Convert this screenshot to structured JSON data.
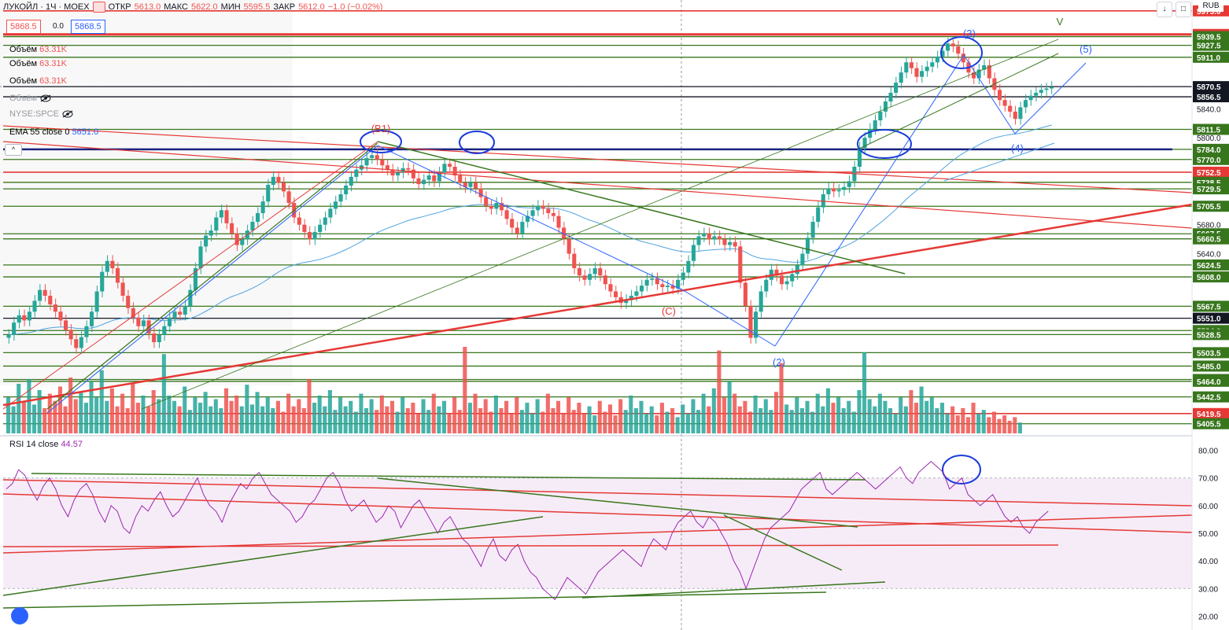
{
  "header": {
    "symbol": "ЛУКОЙЛ · 1Ч · MOEX",
    "open_label": "ОТКР",
    "open": "5613.0",
    "high_label": "МАКС",
    "high": "5622.0",
    "low_label": "МИН",
    "low": "5595.5",
    "close_label": "ЗАКР",
    "close": "5612.0",
    "change": "−1.0 (−0.02%)",
    "currency": "RUB"
  },
  "trade": {
    "sell": "5868.5",
    "spread": "0.0",
    "buy": "5868.5"
  },
  "indicators": {
    "volume_label": "Объём",
    "volume_value": "63.31K",
    "volume_hidden_label": "Объём",
    "compare_symbol": "NYSE:SPCE",
    "ema_label": "EMA 55 close 0",
    "ema_value": "5651.0",
    "rsi_label": "RSI 14 close",
    "rsi_value": "44.57",
    "collapse_symbol": "^"
  },
  "colors": {
    "up": "#26a69a",
    "down": "#ef5350",
    "up_vol": "#26a69a",
    "down_vol": "#ef5350",
    "rsi": "#9c27b0",
    "ema": "#4fa3e0",
    "wave": "#2962ff",
    "hline_green": "#38761d",
    "hline_red": "#e53935"
  },
  "chart_data": [
    {
      "type": "candlestick",
      "title": "ЛУКОЙЛ · 1Ч · MOEX",
      "ylim": [
        5390,
        5990
      ],
      "price_levels": [
        "5975.0",
        "5942.5",
        "5939.5",
        "5927.5",
        "5911.0",
        "5870.5",
        "5856.5",
        "5840.0",
        "5811.5",
        "5800.0",
        "5784.0",
        "5770.0",
        "5752.5",
        "5738.5",
        "5729.5",
        "5705.5",
        "5680.0",
        "5667.5",
        "5660.5",
        "5640.0",
        "5624.5",
        "5608.0",
        "5567.5",
        "5551.0",
        "5534.0",
        "5528.5",
        "5503.5",
        "5485.0",
        "5466.5",
        "5464.0",
        "5442.5",
        "5419.5",
        "5405.5"
      ],
      "highlighted_levels": [
        {
          "value": "5975.0",
          "color": "#e53935"
        },
        {
          "value": "5942.5",
          "color": "#e53935"
        },
        {
          "value": "5939.5",
          "color": "#38761d"
        },
        {
          "value": "5927.5",
          "color": "#38761d"
        },
        {
          "value": "5911.0",
          "color": "#38761d"
        },
        {
          "value": "5870.5",
          "color": "#131722"
        },
        {
          "value": "5856.5",
          "color": "#131722"
        },
        {
          "value": "5811.5",
          "color": "#38761d"
        },
        {
          "value": "5784.0",
          "color": "#38761d"
        },
        {
          "value": "5770.0",
          "color": "#38761d"
        },
        {
          "value": "5752.5",
          "color": "#e53935"
        },
        {
          "value": "5738.5",
          "color": "#38761d"
        },
        {
          "value": "5729.5",
          "color": "#38761d"
        },
        {
          "value": "5705.5",
          "color": "#38761d"
        },
        {
          "value": "5667.5",
          "color": "#38761d"
        },
        {
          "value": "5660.5",
          "color": "#38761d"
        },
        {
          "value": "5624.5",
          "color": "#38761d"
        },
        {
          "value": "5608.0",
          "color": "#38761d"
        },
        {
          "value": "5567.5",
          "color": "#38761d"
        },
        {
          "value": "5551.0",
          "color": "#131722"
        },
        {
          "value": "5534.0",
          "color": "#38761d"
        },
        {
          "value": "5528.5",
          "color": "#38761d"
        },
        {
          "value": "5503.5",
          "color": "#38761d"
        },
        {
          "value": "5485.0",
          "color": "#38761d"
        },
        {
          "value": "5466.5",
          "color": "#38761d"
        },
        {
          "value": "5464.0",
          "color": "#38761d"
        },
        {
          "value": "5442.5",
          "color": "#38761d"
        },
        {
          "value": "5419.5",
          "color": "#e53935"
        },
        {
          "value": "5405.5",
          "color": "#38761d"
        }
      ],
      "wave_labels": [
        "(В1)",
        "(С)",
        "(2)",
        "(3)",
        "(4)",
        "(5)",
        "V"
      ],
      "close_series": [
        5528,
        5545,
        5555,
        5548,
        5560,
        5575,
        5590,
        5582,
        5570,
        5560,
        5548,
        5535,
        5522,
        5510,
        5525,
        5540,
        5560,
        5588,
        5615,
        5630,
        5620,
        5600,
        5582,
        5565,
        5552,
        5540,
        5548,
        5530,
        5518,
        5528,
        5540,
        5552,
        5560,
        5556,
        5568,
        5590,
        5620,
        5650,
        5665,
        5672,
        5690,
        5700,
        5682,
        5668,
        5652,
        5660,
        5672,
        5684,
        5696,
        5712,
        5735,
        5746,
        5738,
        5726,
        5710,
        5690,
        5680,
        5670,
        5660,
        5670,
        5680,
        5690,
        5702,
        5712,
        5722,
        5734,
        5746,
        5756,
        5762,
        5772,
        5776,
        5770,
        5762,
        5756,
        5748,
        5752,
        5758,
        5756,
        5744,
        5736,
        5742,
        5748,
        5740,
        5752,
        5764,
        5760,
        5748,
        5738,
        5732,
        5738,
        5730,
        5718,
        5706,
        5702,
        5710,
        5700,
        5688,
        5676,
        5668,
        5684,
        5692,
        5700,
        5706,
        5702,
        5696,
        5692,
        5676,
        5660,
        5640,
        5620,
        5610,
        5604,
        5612,
        5620,
        5610,
        5598,
        5588,
        5580,
        5572,
        5576,
        5582,
        5588,
        5596,
        5604,
        5606,
        5598,
        5594,
        5596,
        5592,
        5604,
        5614,
        5630,
        5652,
        5664,
        5668,
        5660,
        5664,
        5660,
        5652,
        5656,
        5650,
        5600,
        5568,
        5524,
        5560,
        5588,
        5604,
        5618,
        5610,
        5598,
        5602,
        5612,
        5624,
        5640,
        5662,
        5684,
        5704,
        5722,
        5730,
        5726,
        5728,
        5732,
        5740,
        5760,
        5786,
        5800,
        5812,
        5824,
        5836,
        5850,
        5862,
        5876,
        5890,
        5904,
        5896,
        5884,
        5892,
        5898,
        5904,
        5912,
        5920,
        5930,
        5926,
        5916,
        5904,
        5890,
        5882,
        5894,
        5900,
        5882,
        5866,
        5852,
        5844,
        5836,
        5826,
        5842,
        5852,
        5858,
        5862,
        5866,
        5868,
        5870
      ],
      "volume_series": [
        40,
        30,
        55,
        35,
        60,
        32,
        48,
        28,
        44,
        36,
        52,
        30,
        62,
        38,
        46,
        34,
        58,
        40,
        70,
        36,
        50,
        30,
        44,
        28,
        56,
        34,
        42,
        30,
        48,
        38,
        88,
        42,
        36,
        30,
        52,
        26,
        40,
        34,
        46,
        30,
        38,
        28,
        50,
        36,
        42,
        30,
        54,
        32,
        46,
        30,
        40,
        28,
        36,
        24,
        44,
        30,
        38,
        28,
        60,
        34,
        42,
        30,
        48,
        26,
        40,
        30,
        36,
        24,
        44,
        28,
        38,
        26,
        42,
        30,
        36,
        24,
        40,
        28,
        34,
        22,
        38,
        26,
        44,
        30,
        36,
        22,
        40,
        26,
        96,
        34,
        44,
        28,
        38,
        24,
        42,
        28,
        36,
        22,
        40,
        26,
        34,
        22,
        38,
        24,
        44,
        28,
        36,
        22,
        40,
        26,
        34,
        22,
        30,
        20,
        36,
        24,
        32,
        20,
        38,
        26,
        42,
        28,
        36,
        22,
        30,
        20,
        34,
        24,
        28,
        18,
        32,
        22,
        38,
        26,
        44,
        30,
        50,
        92,
        40,
        58,
        44,
        30,
        36,
        24,
        42,
        28,
        38,
        26,
        46,
        78,
        32,
        26,
        40,
        28,
        36,
        24,
        44,
        30,
        50,
        34,
        40,
        28,
        36,
        24,
        48,
        90,
        38,
        30,
        44,
        36,
        28,
        22,
        40,
        30,
        48,
        34,
        52,
        36,
        40,
        28,
        34,
        22,
        30,
        20,
        28,
        18,
        34,
        22,
        26,
        18,
        24,
        16,
        20,
        14,
        18,
        12
      ],
      "rsi_ylim": [
        15,
        85
      ],
      "rsi_ticks": [
        "80.00",
        "70.00",
        "60.00",
        "50.00",
        "40.00",
        "30.00",
        "20.00"
      ],
      "rsi_series": [
        66,
        68,
        73,
        71,
        66,
        62,
        67,
        70,
        66,
        60,
        56,
        62,
        66,
        68,
        64,
        58,
        54,
        60,
        58,
        52,
        50,
        56,
        60,
        58,
        62,
        65,
        60,
        56,
        58,
        62,
        66,
        70,
        64,
        60,
        58,
        54,
        60,
        64,
        68,
        66,
        70,
        72,
        68,
        64,
        62,
        60,
        58,
        54,
        56,
        60,
        62,
        66,
        70,
        72,
        68,
        62,
        58,
        60,
        62,
        58,
        54,
        56,
        60,
        58,
        52,
        56,
        60,
        62,
        58,
        54,
        50,
        54,
        56,
        52,
        48,
        46,
        42,
        38,
        44,
        48,
        42,
        40,
        44,
        46,
        40,
        36,
        34,
        30,
        28,
        26,
        30,
        34,
        32,
        30,
        28,
        32,
        36,
        38,
        40,
        42,
        44,
        42,
        40,
        38,
        44,
        48,
        46,
        44,
        50,
        54,
        56,
        58,
        54,
        52,
        56,
        54,
        50,
        46,
        40,
        36,
        30,
        36,
        42,
        48,
        52,
        54,
        56,
        58,
        62,
        66,
        68,
        70,
        72,
        66,
        64,
        66,
        68,
        70,
        72,
        70,
        68,
        66,
        68,
        70,
        72,
        74,
        70,
        68,
        72,
        74,
        76,
        74,
        72,
        66,
        68,
        70,
        64,
        62,
        60,
        62,
        64,
        60,
        56,
        54,
        56,
        52,
        50,
        54,
        56,
        58
      ]
    }
  ]
}
